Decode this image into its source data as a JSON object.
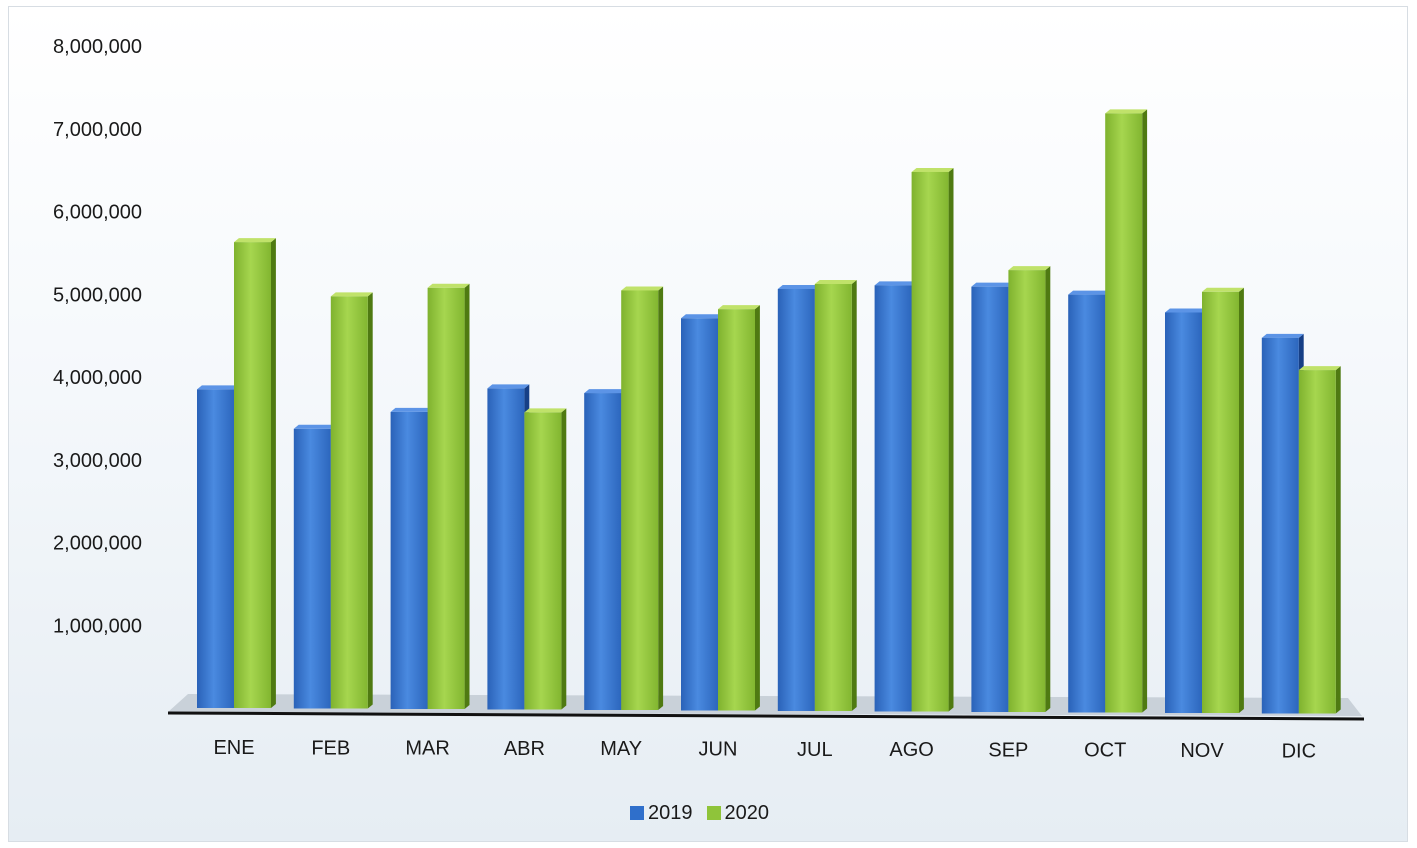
{
  "chart_data": {
    "type": "bar",
    "title": "",
    "xlabel": "",
    "ylabel": "",
    "categories": [
      "ENE",
      "FEB",
      "MAR",
      "ABR",
      "MAY",
      "JUN",
      "JUL",
      "AGO",
      "SEP",
      "OCT",
      "NOV",
      "DIC"
    ],
    "series": [
      {
        "name": "2019",
        "color": "#2f6fcb",
        "values": [
          3850000,
          3380000,
          3590000,
          3880000,
          3830000,
          4740000,
          5100000,
          5150000,
          5140000,
          5050000,
          4840000,
          4540000
        ]
      },
      {
        "name": "2020",
        "color": "#8fc43a",
        "values": [
          5630000,
          4980000,
          5090000,
          3590000,
          5070000,
          4850000,
          5160000,
          6520000,
          5340000,
          7240000,
          5090000,
          4150000
        ]
      }
    ],
    "ylim": [
      0,
      8000000
    ],
    "yticks": [
      1000000,
      2000000,
      3000000,
      4000000,
      5000000,
      6000000,
      7000000,
      8000000
    ],
    "ytick_labels": [
      "1,000,000",
      "2,000,000",
      "3,000,000",
      "4,000,000",
      "5,000,000",
      "6,000,000",
      "7,000,000",
      "8,000,000"
    ],
    "grid": false,
    "legend_position": "bottom"
  },
  "legend": {
    "series_2019": "2019",
    "series_2020": "2020"
  }
}
